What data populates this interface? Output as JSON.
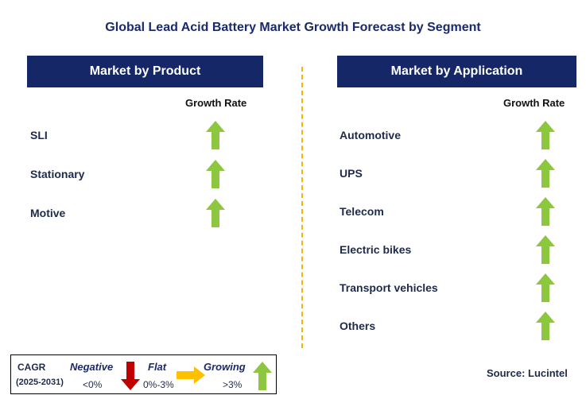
{
  "title": "Global Lead Acid Battery Market Growth Forecast by Segment",
  "left_panel": {
    "header": "Market by Product",
    "column_label": "Growth Rate",
    "items": [
      {
        "label": "SLI",
        "trend": "growing"
      },
      {
        "label": "Stationary",
        "trend": "growing"
      },
      {
        "label": "Motive",
        "trend": "growing"
      }
    ]
  },
  "right_panel": {
    "header": "Market by Application",
    "column_label": "Growth Rate",
    "items": [
      {
        "label": "Automotive",
        "trend": "growing"
      },
      {
        "label": "UPS",
        "trend": "growing"
      },
      {
        "label": "Telecom",
        "trend": "growing"
      },
      {
        "label": "Electric bikes",
        "trend": "growing"
      },
      {
        "label": "Transport vehicles",
        "trend": "growing"
      },
      {
        "label": "Others",
        "trend": "growing"
      }
    ]
  },
  "legend": {
    "cagr_label": "CAGR",
    "period": "(2025-2031)",
    "negative": {
      "label": "Negative",
      "range": "<0%",
      "icon": "arrow-down-icon",
      "color": "#c00000"
    },
    "flat": {
      "label": "Flat",
      "range": "0%-3%",
      "icon": "arrow-right-icon",
      "color": "#ffc000"
    },
    "growing": {
      "label": "Growing",
      "range": ">3%",
      "icon": "arrow-up-icon",
      "color": "#8dc63f"
    }
  },
  "source": "Source: Lucintel",
  "colors": {
    "header_bg": "#152766",
    "growing_arrow": "#8dc63f",
    "divider": "#f2b705"
  }
}
